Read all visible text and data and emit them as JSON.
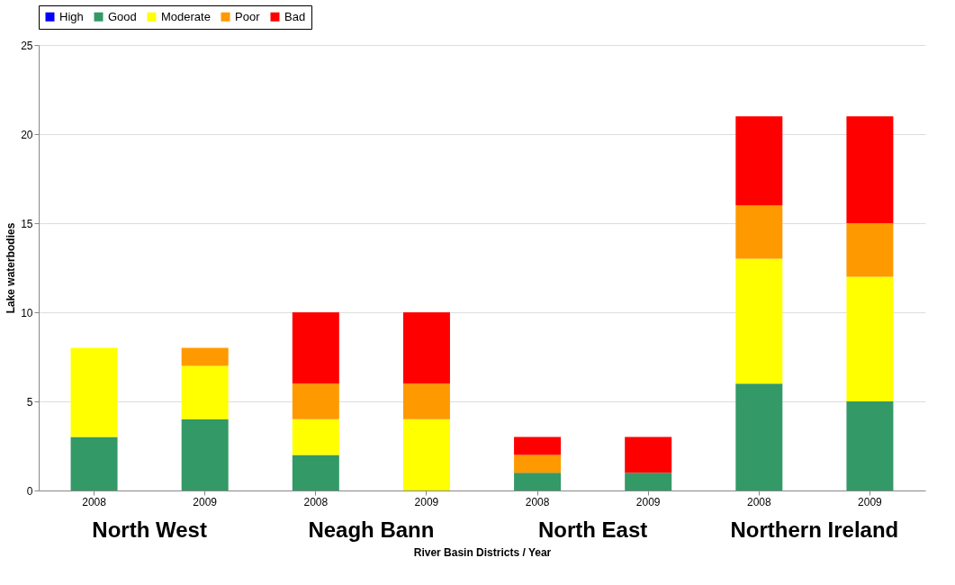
{
  "chart_data": {
    "type": "bar",
    "stacked": true,
    "xlabel": "River Basin Districts / Year",
    "ylabel": "Lake waterbodies",
    "categories": [
      "2008",
      "2009",
      "2008",
      "2009",
      "2008",
      "2009",
      "2008",
      "2009"
    ],
    "series": [
      {
        "name": "High",
        "color": "#0000ff",
        "values": [
          0,
          0,
          0,
          0,
          0,
          0,
          0,
          0
        ]
      },
      {
        "name": "Good",
        "color": "#339966",
        "values": [
          3,
          4,
          2,
          0,
          1,
          1,
          6,
          5
        ]
      },
      {
        "name": "Moderate",
        "color": "#ffff00",
        "values": [
          5,
          3,
          2,
          4,
          0,
          0,
          7,
          7
        ]
      },
      {
        "name": "Poor",
        "color": "#ff9900",
        "values": [
          0,
          1,
          2,
          2,
          1,
          0,
          3,
          3
        ]
      },
      {
        "name": "Bad",
        "color": "#ff0000",
        "values": [
          0,
          0,
          4,
          4,
          1,
          2,
          5,
          6
        ]
      }
    ],
    "annotations": [
      "North West",
      "Neagh Bann",
      "North East",
      "Northern Ireland"
    ],
    "ylim": [
      0,
      25
    ],
    "yticks": [
      0,
      5,
      10,
      15,
      20,
      25
    ],
    "grid": "y",
    "legend": "top"
  }
}
